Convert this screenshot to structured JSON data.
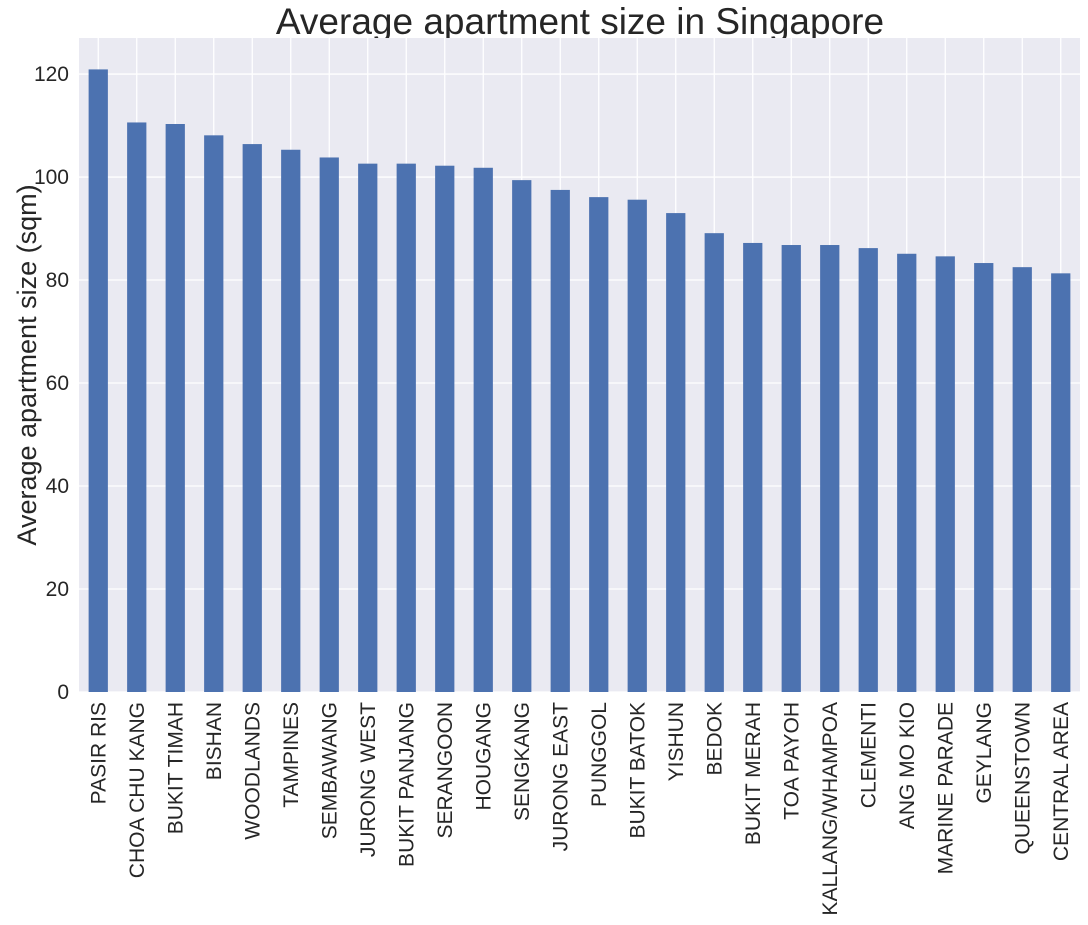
{
  "chart_data": {
    "type": "bar",
    "title": "Average apartment size in Singapore",
    "xlabel": "",
    "ylabel": "Average apartment size (sqm)",
    "ylim": [
      0,
      127
    ],
    "yticks": [
      0,
      20,
      40,
      60,
      80,
      100,
      120
    ],
    "grid": true,
    "legend": "none",
    "bar_color": "#4c72b0",
    "background_color": "#eaeaf2",
    "grid_color": "#ffffff",
    "categories": [
      "PASIR RIS",
      "CHOA CHU KANG",
      "BUKIT TIMAH",
      "BISHAN",
      "WOODLANDS",
      "TAMPINES",
      "SEMBAWANG",
      "JURONG WEST",
      "BUKIT PANJANG",
      "SERANGOON",
      "HOUGANG",
      "SENGKANG",
      "JURONG EAST",
      "PUNGGOL",
      "BUKIT BATOK",
      "YISHUN",
      "BEDOK",
      "BUKIT MERAH",
      "TOA PAYOH",
      "KALLANG/WHAMPOA",
      "CLEMENTI",
      "ANG MO KIO",
      "MARINE PARADE",
      "GEYLANG",
      "QUEENSTOWN",
      "CENTRAL AREA"
    ],
    "values": [
      120.9,
      110.6,
      110.3,
      108.1,
      106.4,
      105.3,
      103.8,
      102.6,
      102.6,
      102.2,
      101.8,
      99.4,
      97.5,
      96.1,
      95.6,
      93.0,
      89.1,
      87.2,
      86.8,
      86.8,
      86.2,
      85.1,
      84.6,
      83.3,
      82.5,
      81.3
    ]
  }
}
